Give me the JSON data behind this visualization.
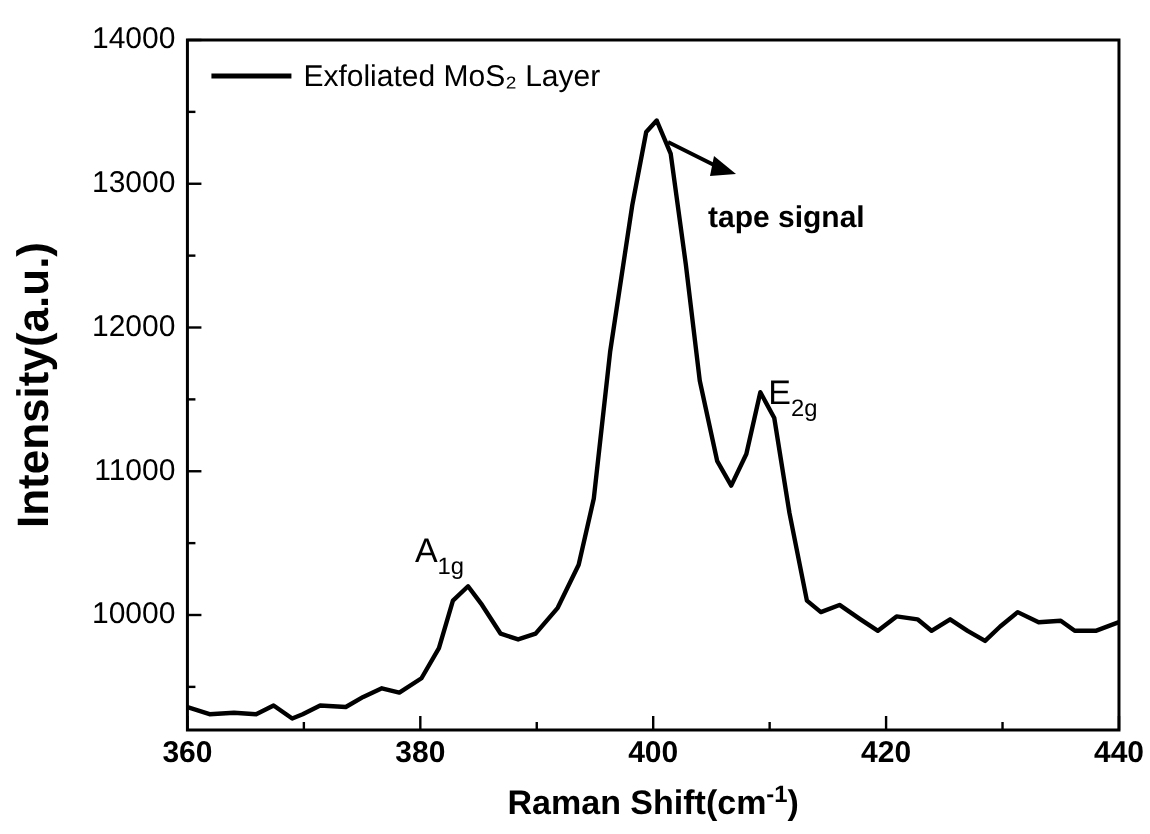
{
  "chart_data": {
    "type": "line",
    "xlabel": "Raman Shift(cm$^{-1}$)",
    "ylabel": "Intensity(a.u.)",
    "xlim": [
      360,
      440
    ],
    "xticks": [
      360,
      {
        "value": 370,
        "label": null
      },
      380,
      {
        "value": 390,
        "label": null
      },
      400,
      {
        "value": 410,
        "label": null
      },
      420,
      {
        "value": 430,
        "label": null
      },
      440
    ],
    "ylim": [
      9200,
      14000
    ],
    "yticks": [
      {
        "value": 9500,
        "label": null
      },
      10000,
      {
        "value": 10500,
        "label": null
      },
      11000,
      {
        "value": 11500,
        "label": null
      },
      12000,
      {
        "value": 12500,
        "label": null
      },
      13000,
      {
        "value": 13500,
        "label": null
      },
      14000
    ],
    "grid": false,
    "legend": "top left",
    "marker": "none",
    "line_style": "solid",
    "series": [
      {
        "name": "Exfoliated MoS₂ Layer",
        "color": "#000000",
        "x": [
          360,
          361.9,
          364,
          365.9,
          367.4,
          369,
          369.9,
          371.4,
          373.6,
          375.1,
          376.7,
          378.2,
          380.1,
          381.6,
          382.8,
          384.1,
          385.3,
          386.9,
          388.4,
          389.9,
          391.8,
          393.6,
          394.9,
          396.3,
          398.2,
          399.4,
          400.3,
          401.5,
          402.8,
          404,
          405.5,
          406.7,
          408,
          409.2,
          410.4,
          411.7,
          413.2,
          414.4,
          416,
          417.8,
          419.3,
          420.9,
          422.7,
          423.9,
          425.5,
          427,
          428.5,
          429.8,
          431.3,
          433.1,
          435,
          436.2,
          438,
          440
        ],
        "values": [
          9360,
          9310,
          9320,
          9310,
          9370,
          9280,
          9310,
          9370,
          9360,
          9430,
          9490,
          9460,
          9560,
          9770,
          10100,
          10200,
          10070,
          9870,
          9830,
          9870,
          10050,
          10350,
          10810,
          11830,
          12850,
          13360,
          13440,
          13210,
          12440,
          11630,
          11070,
          10900,
          11120,
          11550,
          11370,
          10710,
          10100,
          10020,
          10070,
          9970,
          9890,
          9990,
          9970,
          9890,
          9970,
          9890,
          9820,
          9920,
          10020,
          9950,
          9960,
          9890,
          9890,
          9950
        ]
      }
    ],
    "annotations": [
      {
        "text": "A$_{1g}$",
        "x": 384.1,
        "y": 10200
      },
      {
        "text": "E$_{2g}$",
        "x": 409.2,
        "y": 11550
      },
      "tape signal"
    ]
  }
}
